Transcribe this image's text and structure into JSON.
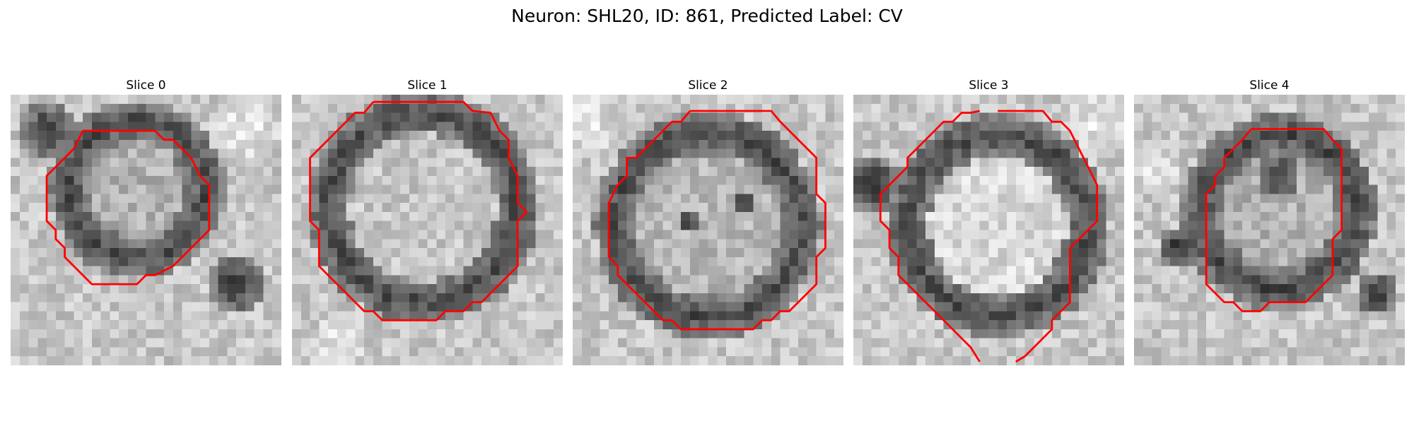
{
  "figure": {
    "title": "Neuron: SHL20, ID: 861, Predicted Label: CV"
  },
  "panels": [
    {
      "title": "Slice 0",
      "image": "grayscale microscopy slice with a red cell contour",
      "contour_color": "#ff0000"
    },
    {
      "title": "Slice 1",
      "image": "grayscale microscopy slice with a red cell contour",
      "contour_color": "#ff0000"
    },
    {
      "title": "Slice 2",
      "image": "grayscale microscopy slice with a red cell contour",
      "contour_color": "#ff0000"
    },
    {
      "title": "Slice 3",
      "image": "grayscale microscopy slice with a red cell contour",
      "contour_color": "#ff0000"
    },
    {
      "title": "Slice 4",
      "image": "grayscale microscopy slice with a red cell contour",
      "contour_color": "#ff0000"
    }
  ]
}
